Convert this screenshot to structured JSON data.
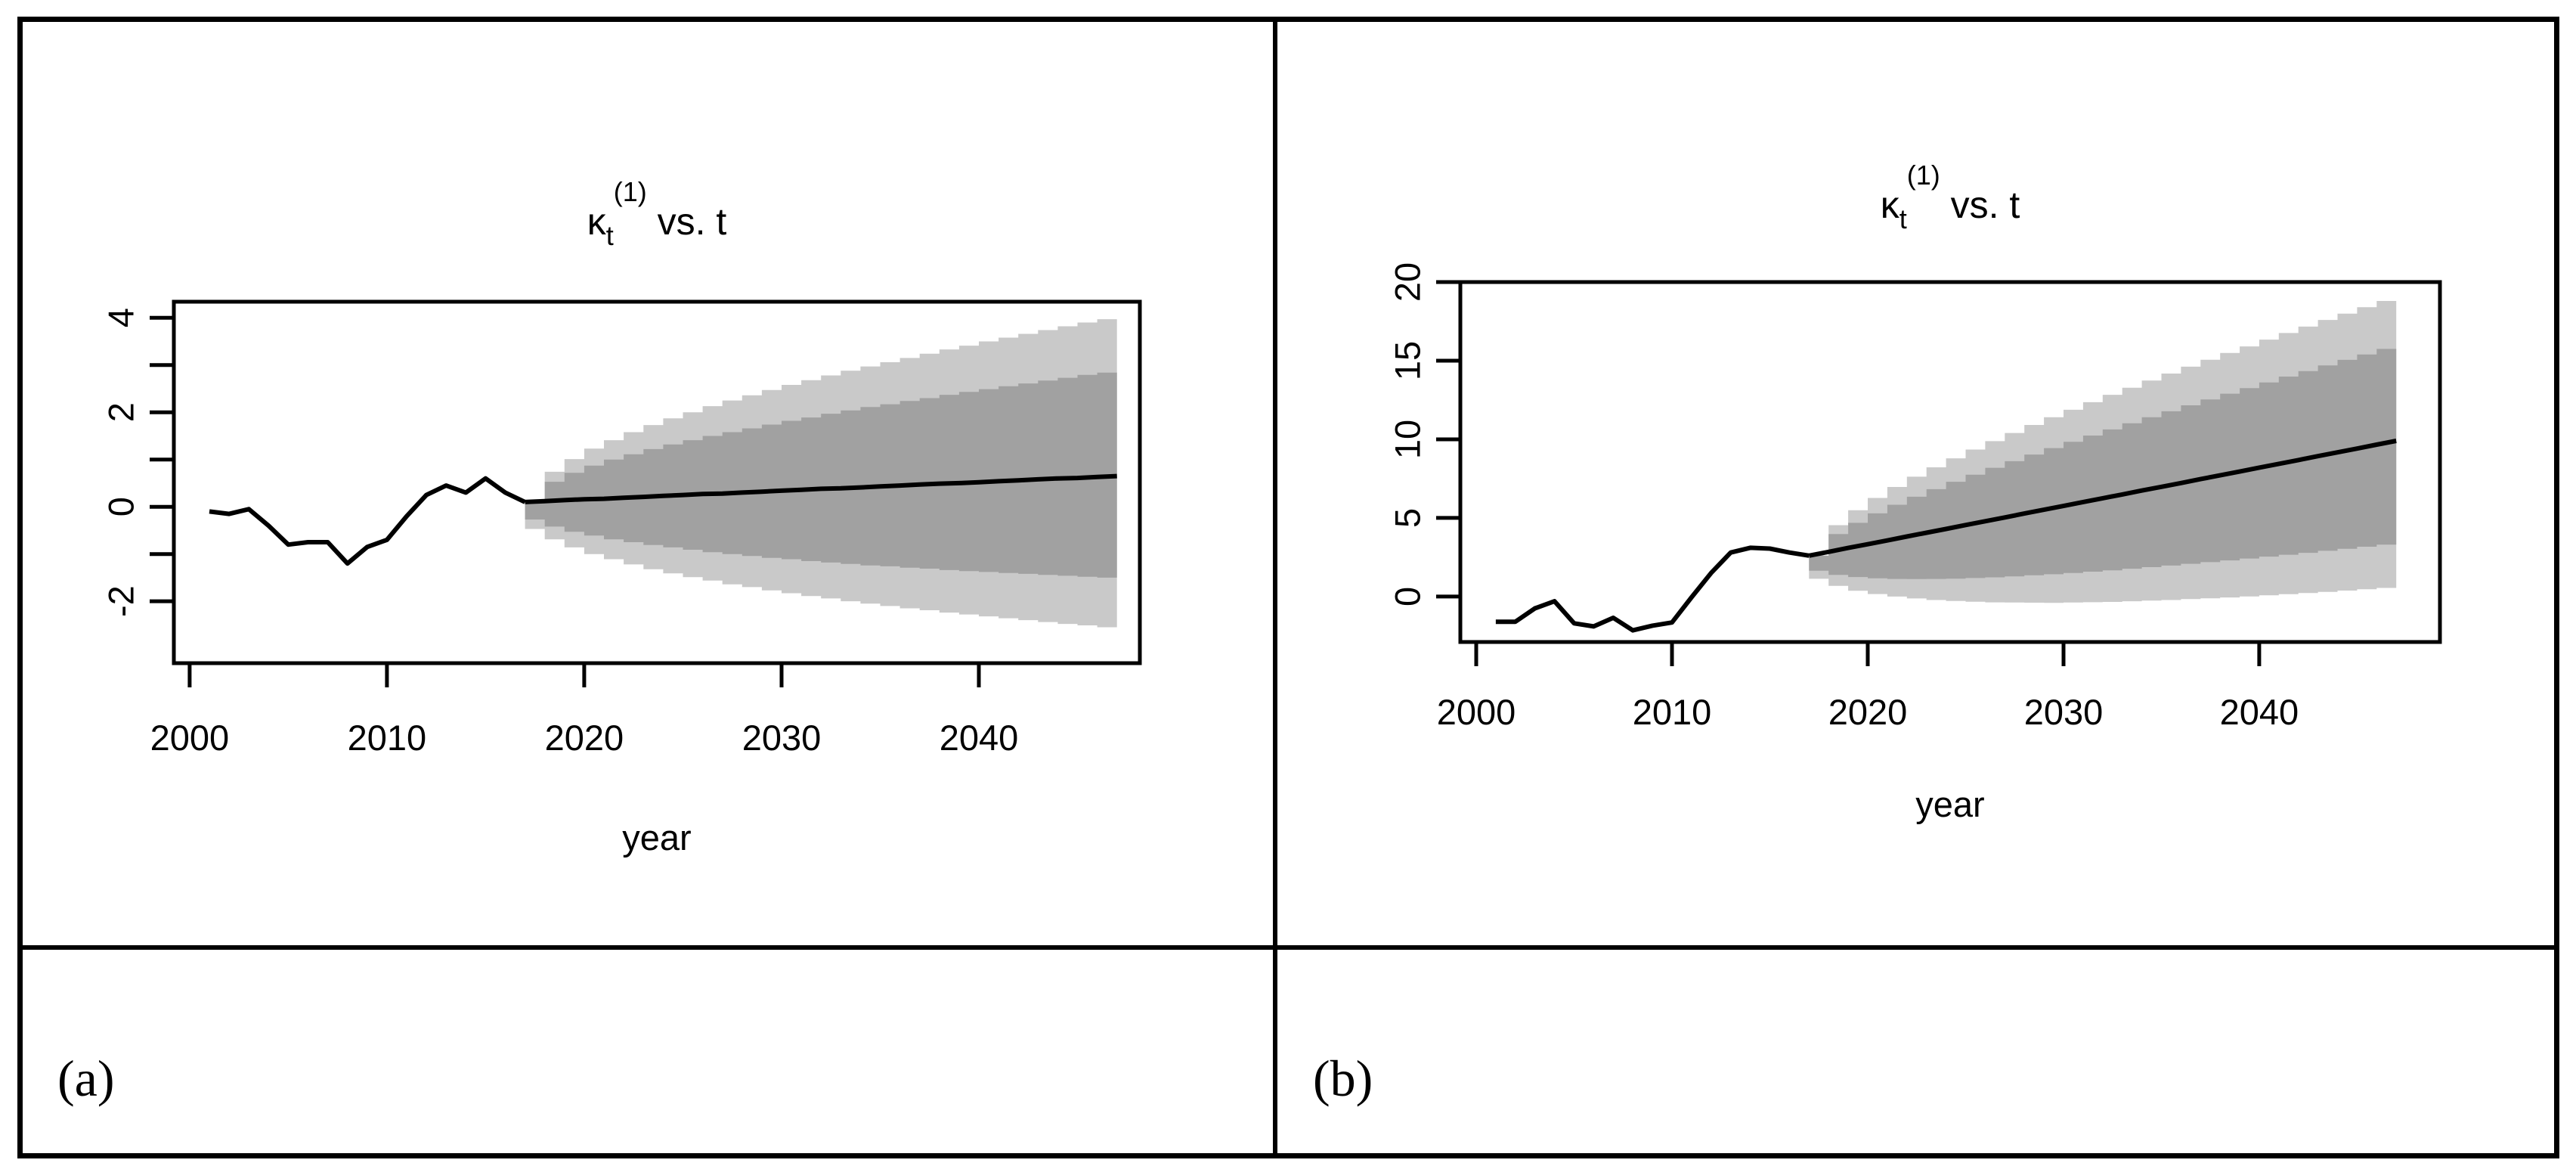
{
  "figure": {
    "background": "#ffffff",
    "border_color": "#000000",
    "panels": [
      {
        "label": "(a)"
      },
      {
        "label": "(b)"
      }
    ]
  },
  "colors": {
    "band_outer": "#c9c9c9",
    "band_inner": "#a1a1a1",
    "line": "#000000",
    "axis": "#000000"
  },
  "chart_data": [
    {
      "type": "line",
      "panel": "a",
      "title": {
        "symbol": "κ",
        "subscript": "t",
        "superscript": "(1)",
        "suffix": " vs. t"
      },
      "xlabel": "year",
      "x_ticks": [
        2000,
        2010,
        2020,
        2030,
        2040
      ],
      "y_ticks": [
        -2,
        0,
        2,
        4
      ],
      "y_minor_ticks": [
        -1,
        1,
        3
      ],
      "xlim": [
        1999.2,
        2048.16
      ],
      "ylim": [
        -3.31,
        4.34
      ],
      "grid": false,
      "legend": "none",
      "history": {
        "years": [
          2001,
          2002,
          2003,
          2004,
          2005,
          2006,
          2007,
          2008,
          2009,
          2010,
          2011,
          2012,
          2013,
          2014,
          2015,
          2016,
          2017
        ],
        "values": [
          -0.1,
          -0.15,
          -0.05,
          -0.4,
          -0.8,
          -0.75,
          -0.75,
          -1.2,
          -0.85,
          -0.7,
          -0.2,
          0.25,
          0.45,
          0.3,
          0.6,
          0.3,
          0.1
        ]
      },
      "forecast": {
        "years": [
          2017,
          2018,
          2019,
          2020,
          2021,
          2022,
          2023,
          2024,
          2025,
          2026,
          2027,
          2028,
          2029,
          2030,
          2031,
          2032,
          2033,
          2034,
          2035,
          2036,
          2037,
          2038,
          2039,
          2040,
          2041,
          2042,
          2043,
          2044,
          2045,
          2046,
          2047
        ],
        "central": [
          0.1,
          0.12,
          0.14,
          0.16,
          0.17,
          0.19,
          0.21,
          0.23,
          0.25,
          0.27,
          0.28,
          0.3,
          0.32,
          0.34,
          0.36,
          0.38,
          0.39,
          0.41,
          0.43,
          0.45,
          0.47,
          0.49,
          0.5,
          0.52,
          0.54,
          0.56,
          0.58,
          0.6,
          0.61,
          0.63,
          0.65
        ],
        "inner_upper": [
          0.1,
          0.53,
          0.72,
          0.87,
          1.0,
          1.11,
          1.22,
          1.32,
          1.41,
          1.5,
          1.58,
          1.66,
          1.74,
          1.82,
          1.89,
          1.97,
          2.04,
          2.11,
          2.17,
          2.24,
          2.3,
          2.37,
          2.43,
          2.49,
          2.55,
          2.61,
          2.67,
          2.73,
          2.79,
          2.84,
          2.9
        ],
        "inner_lower": [
          0.1,
          -0.27,
          -0.42,
          -0.53,
          -0.61,
          -0.69,
          -0.75,
          -0.81,
          -0.86,
          -0.91,
          -0.96,
          -1.0,
          -1.04,
          -1.08,
          -1.11,
          -1.15,
          -1.18,
          -1.21,
          -1.24,
          -1.26,
          -1.29,
          -1.31,
          -1.34,
          -1.36,
          -1.38,
          -1.4,
          -1.42,
          -1.44,
          -1.46,
          -1.48,
          -1.5
        ],
        "outer_upper": [
          0.1,
          0.74,
          1.01,
          1.23,
          1.41,
          1.58,
          1.73,
          1.87,
          2.0,
          2.13,
          2.25,
          2.36,
          2.47,
          2.58,
          2.68,
          2.78,
          2.88,
          2.97,
          3.06,
          3.15,
          3.24,
          3.33,
          3.41,
          3.5,
          3.58,
          3.66,
          3.74,
          3.82,
          3.9,
          3.97,
          4.05
        ],
        "outer_lower": [
          0.1,
          -0.47,
          -0.69,
          -0.86,
          -1.0,
          -1.11,
          -1.22,
          -1.32,
          -1.41,
          -1.49,
          -1.56,
          -1.64,
          -1.7,
          -1.77,
          -1.83,
          -1.89,
          -1.94,
          -2.0,
          -2.05,
          -2.1,
          -2.15,
          -2.19,
          -2.24,
          -2.28,
          -2.32,
          -2.36,
          -2.4,
          -2.44,
          -2.48,
          -2.51,
          -2.55
        ]
      }
    },
    {
      "type": "line",
      "panel": "b",
      "title": {
        "symbol": "κ",
        "subscript": "t",
        "superscript": "(1)",
        "suffix": " vs. t"
      },
      "xlabel": "year",
      "x_ticks": [
        2000,
        2010,
        2020,
        2030,
        2040
      ],
      "y_ticks": [
        0,
        5,
        10,
        15,
        20
      ],
      "y_minor_ticks": [],
      "xlim": [
        1999.19,
        2049.23
      ],
      "ylim": [
        -2.89,
        20.0
      ],
      "grid": false,
      "legend": "none",
      "history": {
        "years": [
          2001,
          2002,
          2003,
          2004,
          2005,
          2006,
          2007,
          2008,
          2009,
          2010,
          2011,
          2012,
          2013,
          2014,
          2015,
          2016,
          2017
        ],
        "values": [
          -1.6,
          -1.6,
          -0.75,
          -0.3,
          -1.7,
          -1.9,
          -1.35,
          -2.15,
          -1.85,
          -1.65,
          -0.05,
          1.5,
          2.8,
          3.1,
          3.05,
          2.8,
          2.6
        ]
      },
      "forecast": {
        "years": [
          2017,
          2018,
          2019,
          2020,
          2021,
          2022,
          2023,
          2024,
          2025,
          2026,
          2027,
          2028,
          2029,
          2030,
          2031,
          2032,
          2033,
          2034,
          2035,
          2036,
          2037,
          2038,
          2039,
          2040,
          2041,
          2042,
          2043,
          2044,
          2045,
          2046,
          2047
        ],
        "central": [
          2.6,
          2.84,
          3.09,
          3.33,
          3.57,
          3.82,
          4.06,
          4.3,
          4.55,
          4.79,
          5.03,
          5.28,
          5.52,
          5.76,
          6.01,
          6.25,
          6.49,
          6.74,
          6.98,
          7.22,
          7.47,
          7.71,
          7.95,
          8.2,
          8.44,
          8.68,
          8.93,
          9.17,
          9.41,
          9.66,
          9.9
        ],
        "inner_upper": [
          2.6,
          3.97,
          4.69,
          5.29,
          5.84,
          6.35,
          6.83,
          7.3,
          7.75,
          8.19,
          8.61,
          9.03,
          9.44,
          9.84,
          10.24,
          10.63,
          11.02,
          11.4,
          11.78,
          12.16,
          12.53,
          12.9,
          13.26,
          13.62,
          13.99,
          14.34,
          14.7,
          15.05,
          15.4,
          15.75,
          16.1
        ],
        "inner_lower": [
          2.6,
          1.64,
          1.38,
          1.24,
          1.16,
          1.12,
          1.11,
          1.12,
          1.14,
          1.18,
          1.22,
          1.28,
          1.35,
          1.42,
          1.5,
          1.58,
          1.67,
          1.77,
          1.87,
          1.97,
          2.08,
          2.19,
          2.3,
          2.42,
          2.54,
          2.66,
          2.78,
          2.91,
          3.04,
          3.17,
          3.3
        ],
        "outer_upper": [
          2.6,
          4.54,
          5.49,
          6.27,
          6.97,
          7.62,
          8.22,
          8.79,
          9.35,
          9.88,
          10.4,
          10.91,
          11.4,
          11.88,
          12.36,
          12.83,
          13.28,
          13.74,
          14.18,
          14.62,
          15.06,
          15.49,
          15.91,
          16.34,
          16.76,
          17.17,
          17.59,
          17.99,
          18.4,
          18.8,
          19.25
        ],
        "outer_lower": [
          2.6,
          1.13,
          0.68,
          0.37,
          0.16,
          0.0,
          -0.12,
          -0.22,
          -0.28,
          -0.33,
          -0.37,
          -0.38,
          -0.39,
          -0.4,
          -0.38,
          -0.36,
          -0.34,
          -0.3,
          -0.26,
          -0.22,
          -0.16,
          -0.11,
          -0.06,
          0.01,
          0.08,
          0.15,
          0.22,
          0.3,
          0.38,
          0.46,
          0.55
        ]
      }
    }
  ]
}
